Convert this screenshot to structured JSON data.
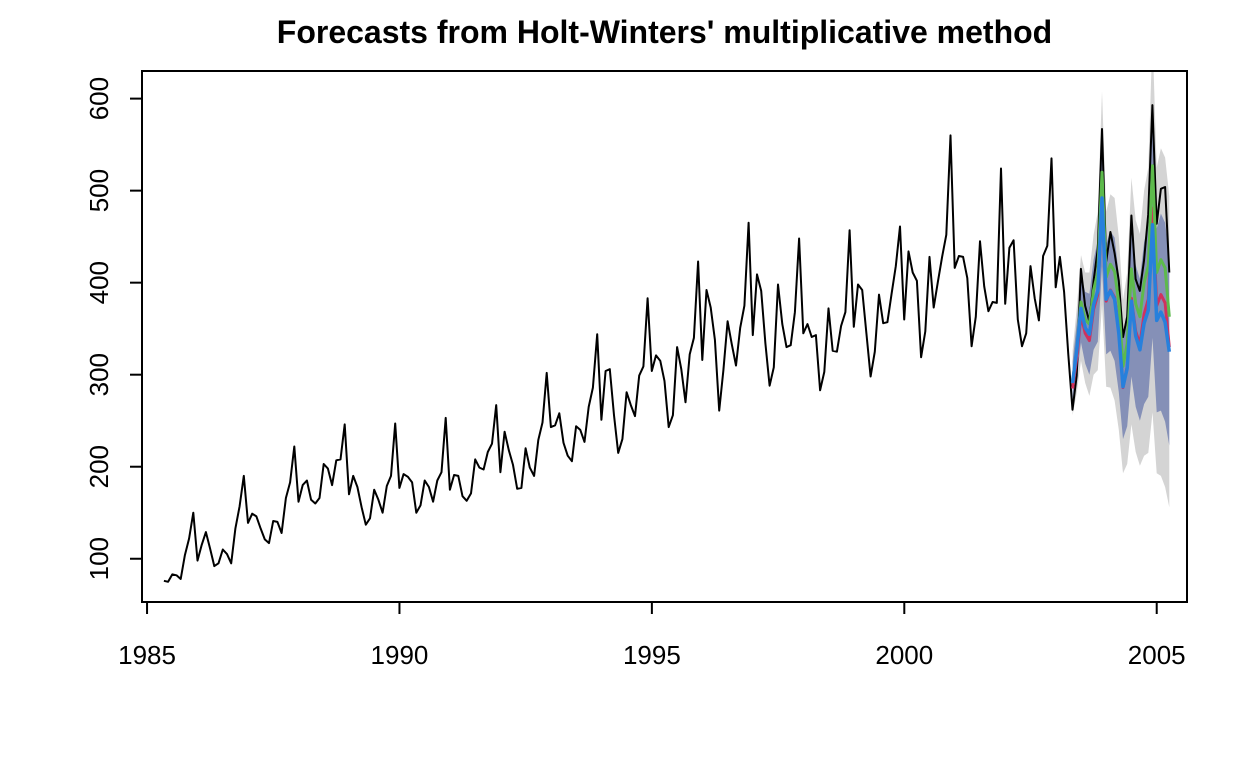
{
  "chart_data": {
    "type": "line",
    "title": "Forecasts from Holt-Winters' multiplicative method",
    "xlabel": "",
    "ylabel": "",
    "xlim": [
      1984.9,
      2005.6
    ],
    "ylim": [
      53,
      630
    ],
    "x_ticks": [
      1985,
      1990,
      1995,
      2000,
      2005
    ],
    "y_ticks": [
      100,
      200,
      300,
      400,
      500,
      600
    ],
    "grid": false,
    "legend": "none",
    "colors": {
      "observed": "#000000",
      "interval_80": "#5B6BA8",
      "interval_95": "#D4D4D4",
      "forecast_red": "#D1315E",
      "forecast_green": "#5DBA4C",
      "forecast_blue": "#2780DC"
    },
    "series": [
      {
        "role": "observed",
        "x_start": 1985.333,
        "step": 0.08333,
        "values": [
          76,
          75,
          83,
          82,
          78,
          104,
          122,
          150,
          98,
          115,
          129,
          111,
          92,
          95,
          110,
          105,
          95,
          133,
          157,
          190,
          139,
          149,
          146,
          133,
          121,
          117,
          141,
          140,
          128,
          166,
          183,
          222,
          162,
          180,
          185,
          164,
          160,
          166,
          203,
          198,
          180,
          207,
          208,
          246,
          170,
          190,
          178,
          156,
          137,
          144,
          175,
          164,
          150,
          179,
          190,
          247,
          177,
          192,
          189,
          183,
          150,
          158,
          185,
          178,
          162,
          185,
          194,
          253,
          175,
          191,
          190,
          168,
          163,
          171,
          208,
          199,
          197,
          216,
          225,
          267,
          194,
          238,
          218,
          202,
          176,
          177,
          220,
          199,
          190,
          229,
          248,
          302,
          243,
          245,
          258,
          226,
          212,
          206,
          244,
          240,
          227,
          265,
          286,
          344,
          251,
          304,
          306,
          256,
          215,
          230,
          281,
          267,
          255,
          299,
          309,
          383,
          304,
          321,
          315,
          293,
          243,
          256,
          330,
          306,
          270,
          322,
          340,
          423,
          316,
          392,
          373,
          338,
          261,
          305,
          358,
          333,
          310,
          351,
          375,
          465,
          343,
          409,
          391,
          334,
          288,
          308,
          398,
          355,
          330,
          332,
          368,
          448,
          345,
          355,
          341,
          343,
          283,
          303,
          372,
          326,
          325,
          353,
          368,
          457,
          352,
          398,
          392,
          345,
          298,
          325,
          387,
          356,
          357,
          388,
          418,
          461,
          360,
          434,
          411,
          402,
          319,
          347,
          428,
          373,
          401,
          428,
          452,
          560,
          416,
          429,
          428,
          405,
          331,
          363,
          445,
          396,
          369,
          379,
          378,
          524,
          377,
          438,
          446,
          360,
          331,
          345,
          418,
          383,
          359,
          429,
          440,
          535,
          395,
          428,
          390,
          322,
          262,
          299,
          415,
          375,
          358,
          402,
          437,
          567,
          423,
          455,
          432,
          402,
          341,
          363,
          473,
          404,
          391,
          424,
          474,
          593,
          464,
          502,
          504,
          411
        ]
      },
      {
        "role": "forecast_red",
        "x_start": 2003.333,
        "step": 0.08333,
        "values": [
          285,
          318,
          365,
          345,
          337,
          371,
          387,
          487,
          380,
          392,
          384,
          351,
          286,
          309,
          383,
          347,
          333,
          366,
          382,
          481,
          375,
          387,
          378,
          330
        ]
      },
      {
        "role": "forecast_green",
        "x_start": 2003.333,
        "step": 0.08333,
        "values": [
          292,
          328,
          379,
          360,
          355,
          392,
          411,
          520,
          406,
          420,
          412,
          378,
          309,
          334,
          415,
          377,
          363,
          400,
          418,
          527,
          411,
          425,
          416,
          363
        ]
      },
      {
        "role": "forecast_blue",
        "x_start": 2003.333,
        "step": 0.08333,
        "values": [
          291,
          327,
          372,
          351,
          344,
          376,
          391,
          492,
          382,
          391,
          382,
          345,
          287,
          307,
          380,
          342,
          327,
          356,
          370,
          463,
          359,
          368,
          357,
          325
        ]
      },
      {
        "role": "interval_80",
        "x_start": 2003.333,
        "step": 0.08333,
        "lower": [
          268,
          297,
          335,
          312,
          300,
          327,
          336,
          418,
          322,
          326,
          315,
          281,
          230,
          244,
          298,
          265,
          250,
          268,
          276,
          340,
          259,
          261,
          249,
          223
        ],
        "upper": [
          314,
          357,
          409,
          390,
          388,
          425,
          446,
          566,
          442,
          456,
          449,
          409,
          344,
          370,
          462,
          419,
          404,
          444,
          464,
          586,
          459,
          475,
          465,
          427
        ]
      },
      {
        "role": "interval_95",
        "x_start": 2003.333,
        "step": 0.08333,
        "lower": [
          256,
          281,
          315,
          291,
          277,
          300,
          305,
          376,
          287,
          286,
          272,
          240,
          193,
          203,
          246,
          216,
          201,
          212,
          215,
          259,
          193,
          190,
          178,
          156
        ],
        "upper": [
          326,
          373,
          430,
          411,
          411,
          452,
          477,
          608,
          477,
          496,
          492,
          450,
          381,
          411,
          514,
          468,
          453,
          500,
          525,
          668,
          525,
          546,
          536,
          494
        ]
      }
    ]
  }
}
